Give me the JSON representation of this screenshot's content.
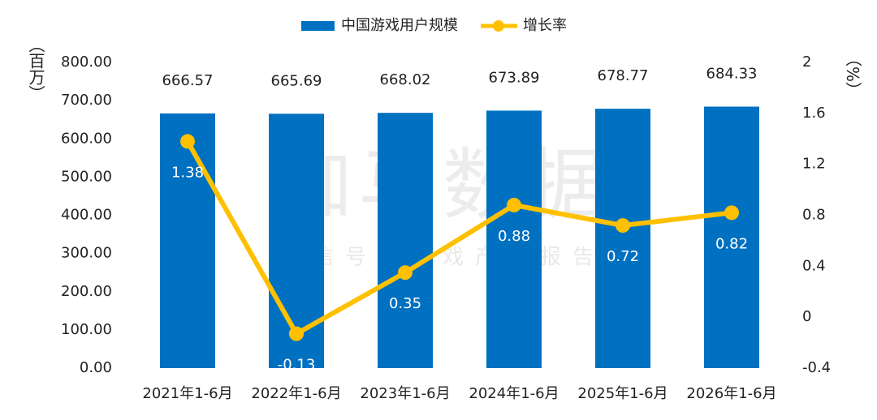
{
  "chart_data": {
    "type": "bar",
    "annotations": [
      "伽马数据",
      "微信号：游戏产业报告"
    ],
    "ylabel": "（百万）",
    "y2label": "（%）",
    "categories": [
      "2021年1-6月",
      "2022年1-6月",
      "2023年1-6月",
      "2024年1-6月",
      "2025年1-6月",
      "2026年1-6月"
    ],
    "series": [
      {
        "name": "中国游戏用户规模",
        "type": "bar",
        "color": "#0070c0",
        "values": [
          666.57,
          665.69,
          668.02,
          673.89,
          678.77,
          684.33
        ]
      },
      {
        "name": "增长率",
        "type": "line",
        "axis": "y2",
        "color": "#ffc000",
        "values": [
          1.38,
          -0.13,
          0.35,
          0.88,
          0.72,
          0.82
        ]
      }
    ],
    "ylim": [
      0,
      800
    ],
    "yticks": [
      {
        "value": 0,
        "label": "0.00"
      },
      {
        "value": 100,
        "label": "100.00"
      },
      {
        "value": 200,
        "label": "200.00"
      },
      {
        "value": 300,
        "label": "300.00"
      },
      {
        "value": 400,
        "label": "400.00"
      },
      {
        "value": 500,
        "label": "500.00"
      },
      {
        "value": 600,
        "label": "600.00"
      },
      {
        "value": 700,
        "label": "700.00"
      },
      {
        "value": 800,
        "label": "800.00"
      }
    ],
    "y2lim": [
      -0.4,
      2
    ],
    "y2ticks": [
      -0.4,
      0,
      0.4,
      0.8,
      1.2,
      1.6,
      2
    ],
    "legend": "top"
  }
}
